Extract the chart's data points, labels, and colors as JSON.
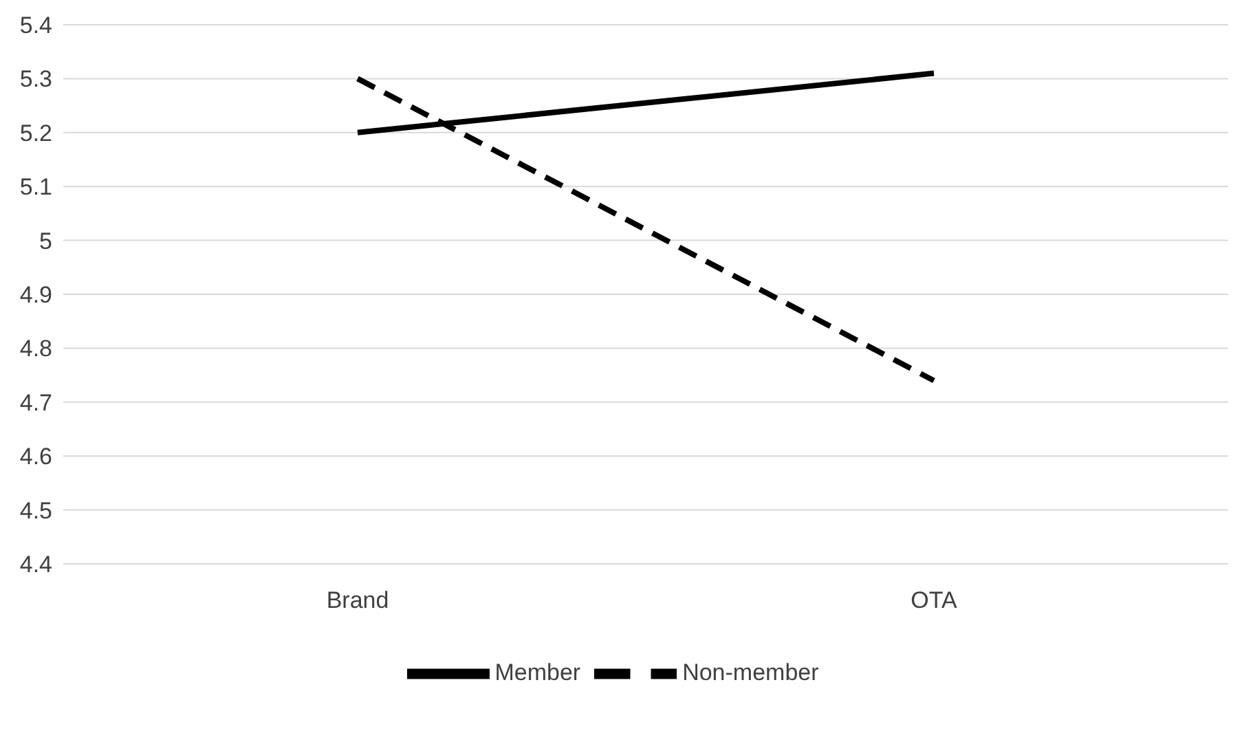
{
  "chart_data": {
    "type": "line",
    "categories": [
      "Brand",
      "OTA"
    ],
    "series": [
      {
        "name": "Member",
        "color": "#000000",
        "values": [
          5.2,
          5.31
        ],
        "line_style": "solid"
      },
      {
        "name": "Non-member",
        "color": "#000000",
        "values": [
          5.3,
          4.74
        ],
        "line_style": "dashed"
      }
    ],
    "ylim": [
      4.4,
      5.4
    ],
    "yticks": [
      4.4,
      4.5,
      4.6,
      4.7,
      4.8,
      4.9,
      5,
      5.1,
      5.2,
      5.3,
      5.4
    ],
    "grid": "y",
    "legend": "bottom",
    "marker": "none"
  }
}
